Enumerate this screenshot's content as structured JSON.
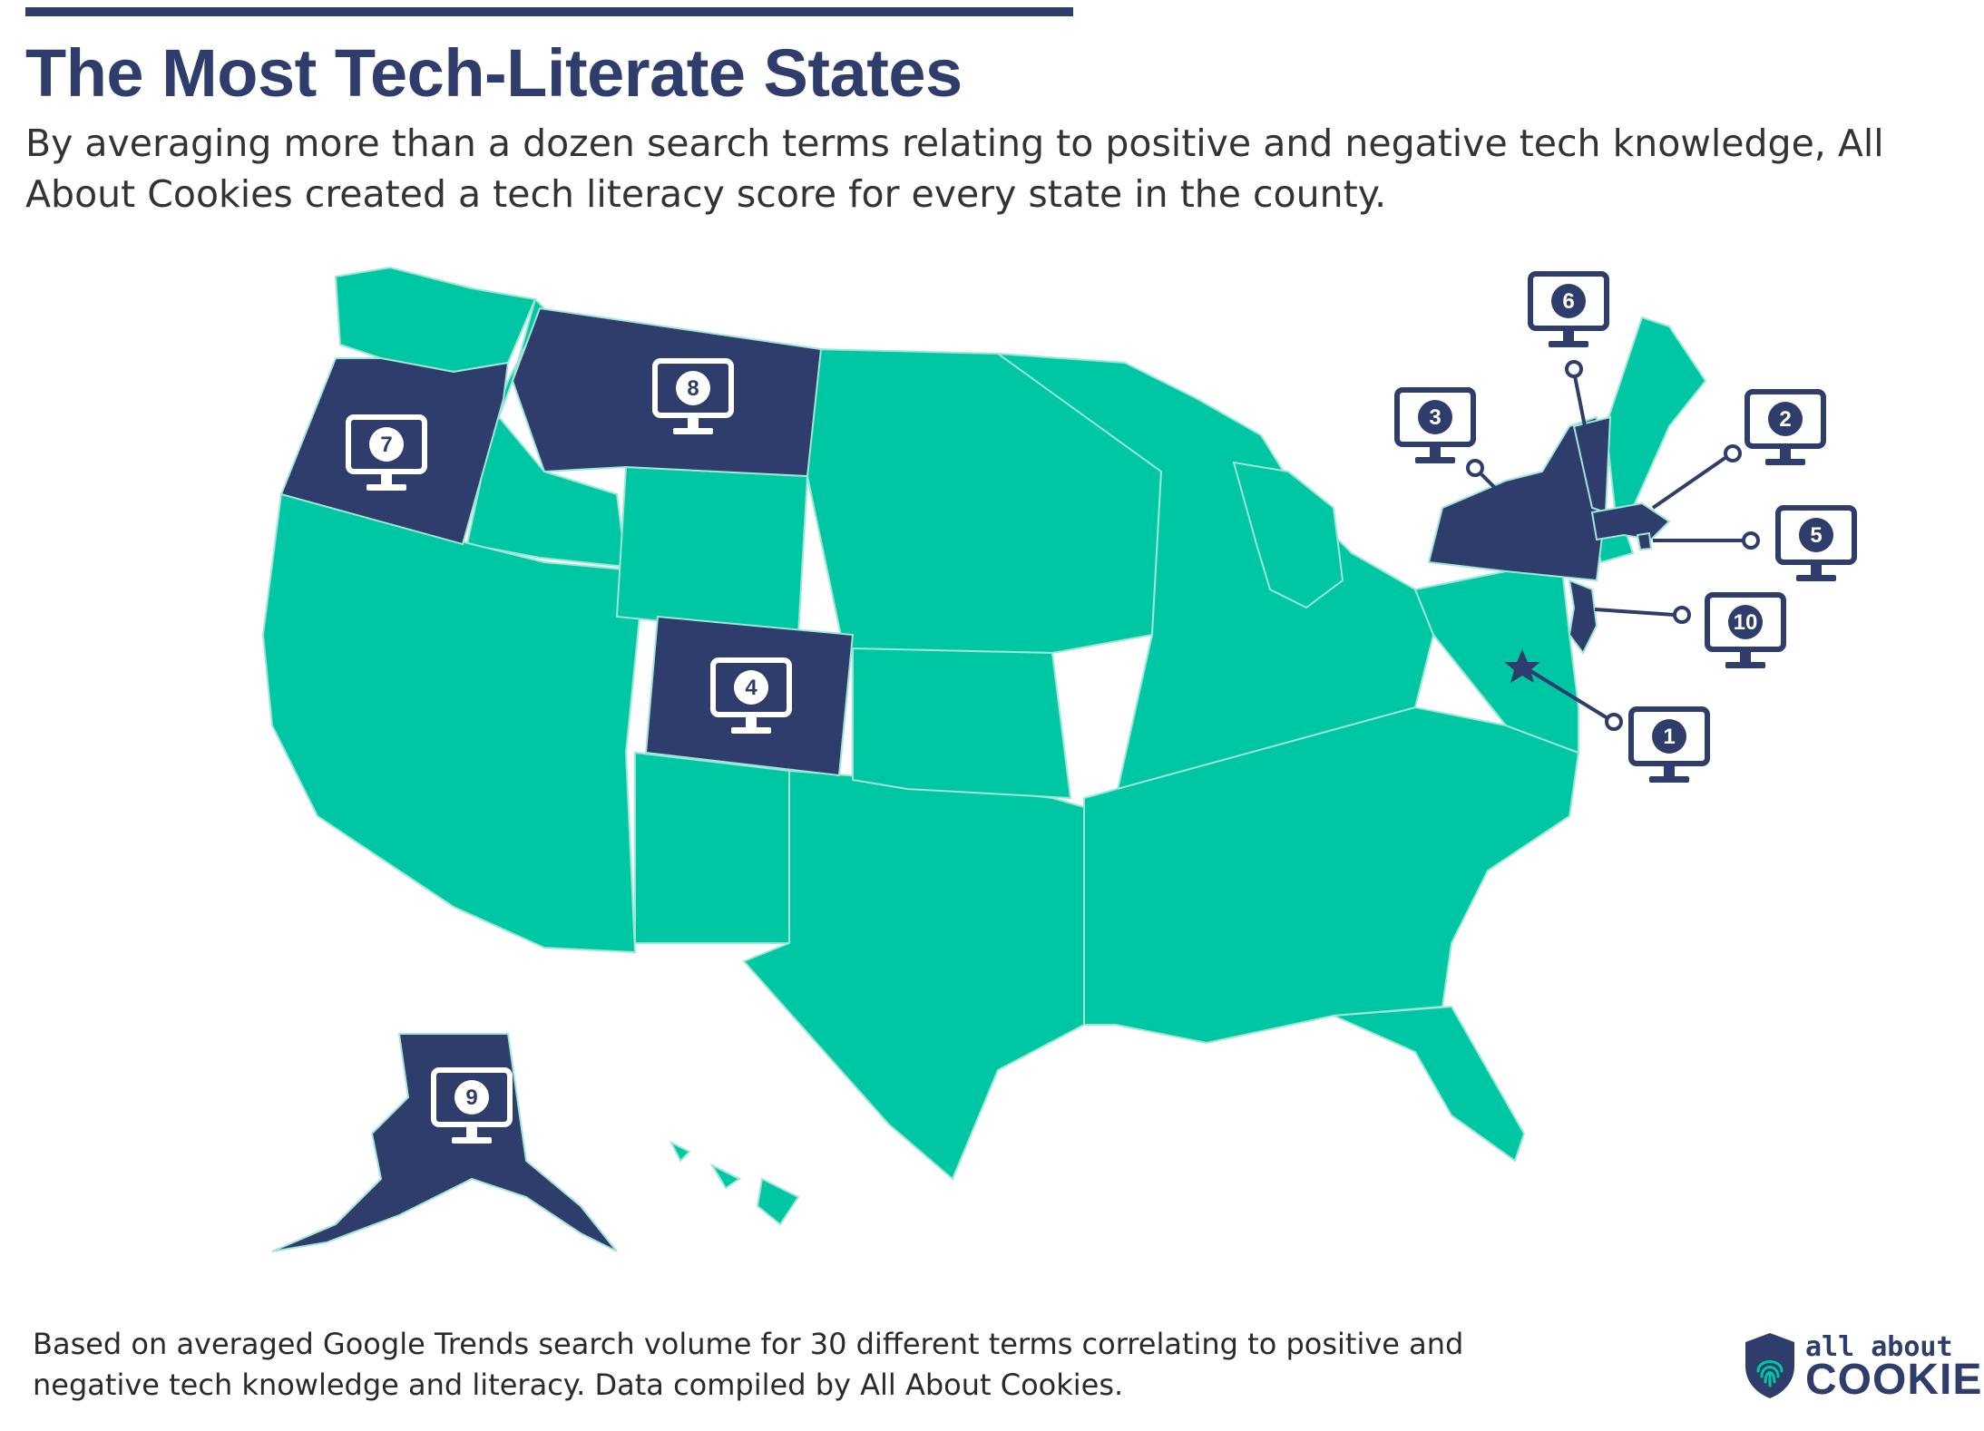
{
  "title": "The Most Tech-Literate States",
  "subtitle": "By averaging more than a dozen search terms relating to positive and negative tech knowledge, All About Cookies created a tech literacy score for every state in the county.",
  "footnote": "Based on averaged Google Trends search volume for 30 different terms correlating to positive and negative tech knowledge and literacy. Data compiled by All About Cookies.",
  "logo": {
    "line1": "all about",
    "line2": "COOKIES"
  },
  "colors": {
    "highlight": "#2e3d6b",
    "base": "#00c7a3",
    "border": "#9fe6d6",
    "text": "#333333"
  },
  "rankings": [
    {
      "rank": "1",
      "state": "District of Columbia"
    },
    {
      "rank": "2",
      "state": "Massachusetts"
    },
    {
      "rank": "3",
      "state": "New York"
    },
    {
      "rank": "4",
      "state": "Colorado"
    },
    {
      "rank": "5",
      "state": "Rhode Island"
    },
    {
      "rank": "6",
      "state": "Vermont"
    },
    {
      "rank": "7",
      "state": "Oregon"
    },
    {
      "rank": "8",
      "state": "Montana"
    },
    {
      "rank": "9",
      "state": "Alaska"
    },
    {
      "rank": "10",
      "state": "New Jersey"
    }
  ],
  "icons": {
    "marker": "monitor-icon",
    "dc_marker": "star-icon",
    "logo": "shield-fingerprint-icon"
  }
}
